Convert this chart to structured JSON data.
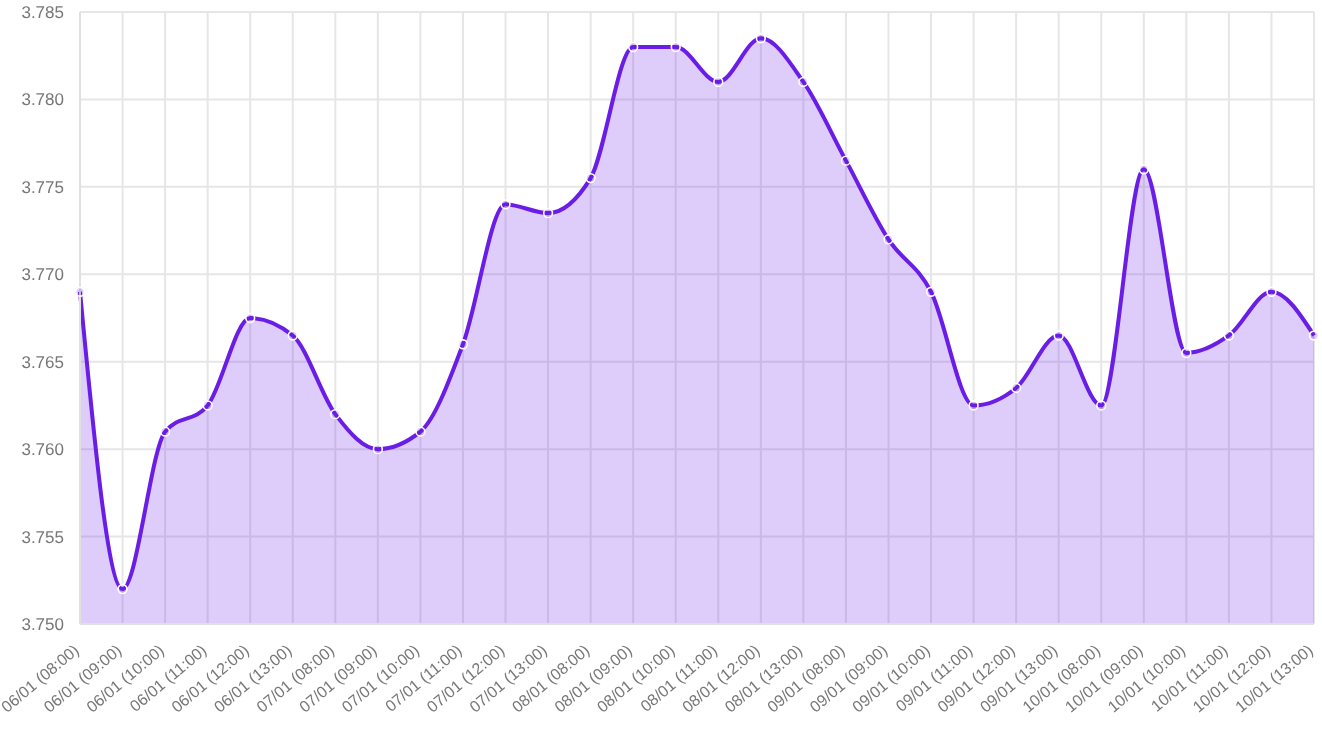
{
  "chart_data": {
    "type": "area",
    "categories": [
      "06/01 (08:00)",
      "06/01 (09:00)",
      "06/01 (10:00)",
      "06/01 (11:00)",
      "06/01 (12:00)",
      "06/01 (13:00)",
      "07/01 (08:00)",
      "07/01 (09:00)",
      "07/01 (10:00)",
      "07/01 (11:00)",
      "07/01 (12:00)",
      "07/01 (13:00)",
      "08/01 (08:00)",
      "08/01 (09:00)",
      "08/01 (10:00)",
      "08/01 (11:00)",
      "08/01 (12:00)",
      "08/01 (13:00)",
      "09/01 (08:00)",
      "09/01 (09:00)",
      "09/01 (10:00)",
      "09/01 (11:00)",
      "09/01 (12:00)",
      "09/01 (13:00)",
      "10/01 (08:00)",
      "10/01 (09:00)",
      "10/01 (10:00)",
      "10/01 (11:00)",
      "10/01 (12:00)",
      "10/01 (13:00)"
    ],
    "series": [
      {
        "color": "#6a1de6",
        "values": [
          3.769,
          3.752,
          3.761,
          3.7625,
          3.7675,
          3.7665,
          3.762,
          3.76,
          3.761,
          3.766,
          3.774,
          3.7735,
          3.7755,
          3.783,
          3.783,
          3.781,
          3.7835,
          3.781,
          3.7765,
          3.772,
          3.769,
          3.7625,
          3.7635,
          3.7665,
          3.7625,
          3.776,
          3.7655,
          3.7665,
          3.769,
          3.7665
        ]
      }
    ],
    "ylim": [
      3.75,
      3.785
    ],
    "yticks": [
      {
        "value": 3.75,
        "label": "3.750"
      },
      3.755,
      {
        "value": 3.76,
        "label": "3.760"
      },
      3.765,
      {
        "value": 3.77,
        "label": "3.770"
      },
      3.775,
      {
        "value": 3.78,
        "label": "3.780"
      },
      3.785
    ],
    "grid": true,
    "marker": "circle",
    "line_style": "solid",
    "legend": false
  }
}
